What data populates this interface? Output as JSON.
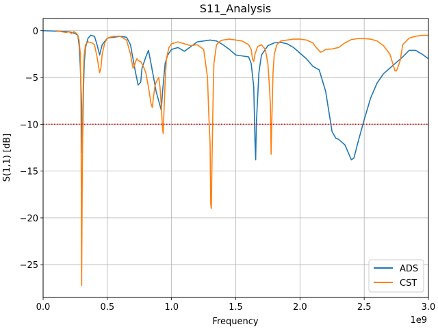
{
  "chart_data": {
    "type": "line",
    "title": "S11_Analysis",
    "xlabel": "Frequency",
    "ylabel": "S(1,1) [dB]",
    "x_scale_label": "1e9",
    "xlim": [
      0,
      3.0
    ],
    "ylim": [
      -28.5,
      1.3
    ],
    "xticks": [
      0,
      0.5,
      1.0,
      1.5,
      2.0,
      2.5,
      3.0
    ],
    "xtick_labels": [
      "0.0",
      "0.5",
      "1.0",
      "1.5",
      "2.0",
      "2.5",
      "3.0"
    ],
    "yticks": [
      0,
      -5,
      -10,
      -15,
      -20,
      -25
    ],
    "ytick_labels": [
      "0",
      "−5",
      "−10",
      "−15",
      "−20",
      "−25"
    ],
    "grid": true,
    "legend_position": "lower-right",
    "threshold_line": {
      "y": -10,
      "color": "#ff0000",
      "style": "dotted"
    },
    "series": [
      {
        "name": "ADS",
        "color": "#1f77b4",
        "x": [
          0,
          0.1,
          0.2,
          0.25,
          0.27,
          0.28,
          0.29,
          0.3,
          0.305,
          0.31,
          0.315,
          0.32,
          0.33,
          0.35,
          0.37,
          0.4,
          0.42,
          0.44,
          0.46,
          0.5,
          0.55,
          0.6,
          0.65,
          0.68,
          0.7,
          0.72,
          0.74,
          0.76,
          0.77,
          0.8,
          0.82,
          0.84,
          0.86,
          0.88,
          0.9,
          0.92,
          0.93,
          0.95,
          0.97,
          1.0,
          1.05,
          1.1,
          1.15,
          1.2,
          1.3,
          1.35,
          1.4,
          1.45,
          1.5,
          1.55,
          1.6,
          1.62,
          1.64,
          1.65,
          1.655,
          1.66,
          1.68,
          1.7,
          1.75,
          1.8,
          1.85,
          1.9,
          1.95,
          2.0,
          2.05,
          2.1,
          2.15,
          2.2,
          2.25,
          2.28,
          2.3,
          2.35,
          2.4,
          2.42,
          2.45,
          2.5,
          2.55,
          2.6,
          2.65,
          2.7,
          2.75,
          2.8,
          2.85,
          2.9,
          2.95,
          3.0
        ],
        "y": [
          0,
          -0.05,
          -0.1,
          -0.3,
          -0.5,
          -1.5,
          -4.0,
          -8.0,
          -13.0,
          -10.0,
          -6.0,
          -3.5,
          -1.8,
          -0.8,
          -0.5,
          -0.6,
          -1.5,
          -2.6,
          -1.5,
          -0.8,
          -0.7,
          -0.6,
          -0.7,
          -1.5,
          -3.0,
          -4.5,
          -5.8,
          -5.5,
          -4.0,
          -2.8,
          -2.1,
          -3.5,
          -5.0,
          -6.5,
          -7.5,
          -8.5,
          -6.5,
          -3.5,
          -2.6,
          -2.0,
          -1.8,
          -2.2,
          -1.7,
          -1.2,
          -1.0,
          -1.1,
          -1.5,
          -2.0,
          -2.6,
          -2.7,
          -2.8,
          -3.5,
          -6.0,
          -12.0,
          -13.8,
          -10.0,
          -4.5,
          -2.6,
          -1.6,
          -1.3,
          -1.25,
          -1.4,
          -1.8,
          -2.4,
          -3.0,
          -3.8,
          -4.2,
          -6.5,
          -10.8,
          -11.5,
          -11.6,
          -12.2,
          -13.8,
          -13.6,
          -12.0,
          -9.5,
          -7.2,
          -5.6,
          -4.6,
          -4.0,
          -3.4,
          -2.8,
          -2.1,
          -2.1,
          -2.5,
          -3.0
        ]
      },
      {
        "name": "CST",
        "color": "#ff7f0e",
        "x": [
          0.1,
          0.14,
          0.18,
          0.2,
          0.22,
          0.24,
          0.26,
          0.27,
          0.28,
          0.29,
          0.295,
          0.3,
          0.305,
          0.31,
          0.315,
          0.32,
          0.33,
          0.35,
          0.38,
          0.4,
          0.42,
          0.44,
          0.45,
          0.46,
          0.48,
          0.5,
          0.52,
          0.55,
          0.6,
          0.65,
          0.68,
          0.7,
          0.71,
          0.72,
          0.73,
          0.74,
          0.76,
          0.78,
          0.8,
          0.82,
          0.84,
          0.85,
          0.86,
          0.87,
          0.88,
          0.9,
          0.91,
          0.92,
          0.93,
          0.935,
          0.94,
          0.95,
          0.96,
          0.98,
          1.0,
          1.05,
          1.1,
          1.15,
          1.2,
          1.25,
          1.28,
          1.29,
          1.3,
          1.305,
          1.31,
          1.315,
          1.32,
          1.325,
          1.33,
          1.35,
          1.38,
          1.4,
          1.45,
          1.5,
          1.55,
          1.6,
          1.62,
          1.63,
          1.64,
          1.65,
          1.67,
          1.7,
          1.73,
          1.75,
          1.76,
          1.77,
          1.775,
          1.78,
          1.79,
          1.8,
          1.82,
          1.85,
          1.9,
          1.95,
          2.0,
          2.05,
          2.1,
          2.12,
          2.14,
          2.16,
          2.18,
          2.2,
          2.25,
          2.3,
          2.35,
          2.4,
          2.45,
          2.5,
          2.55,
          2.6,
          2.65,
          2.7,
          2.72,
          2.74,
          2.75,
          2.76,
          2.78,
          2.8,
          2.85,
          2.9,
          2.95,
          3.0
        ],
        "y": [
          0,
          -0.1,
          -0.2,
          -0.1,
          -0.3,
          -0.1,
          -0.3,
          -0.5,
          -1.0,
          -2.5,
          -8.0,
          -27.2,
          -15.0,
          -8.0,
          -4.0,
          -2.5,
          -1.5,
          -1.2,
          -1.3,
          -1.5,
          -2.8,
          -4.5,
          -4.0,
          -2.5,
          -1.3,
          -0.8,
          -0.7,
          -0.6,
          -0.6,
          -1.0,
          -2.5,
          -4.0,
          -3.8,
          -3.3,
          -3.0,
          -3.2,
          -3.3,
          -3.8,
          -4.5,
          -6.0,
          -7.8,
          -8.2,
          -7.0,
          -6.0,
          -5.5,
          -5.0,
          -6.0,
          -8.0,
          -10.5,
          -11.0,
          -9.0,
          -5.5,
          -3.0,
          -1.8,
          -1.4,
          -1.2,
          -1.4,
          -1.6,
          -1.5,
          -2.0,
          -5.0,
          -9.0,
          -12.0,
          -18.5,
          -19.0,
          -14.0,
          -10.0,
          -6.0,
          -3.5,
          -1.5,
          -1.1,
          -1.0,
          -0.9,
          -1.0,
          -1.1,
          -1.5,
          -2.0,
          -3.0,
          -3.3,
          -2.5,
          -1.7,
          -1.5,
          -2.0,
          -3.5,
          -5.5,
          -8.0,
          -13.2,
          -10.0,
          -4.5,
          -2.5,
          -1.5,
          -1.1,
          -1.0,
          -0.9,
          -0.9,
          -1.0,
          -1.3,
          -1.7,
          -2.0,
          -2.3,
          -2.2,
          -2.0,
          -1.95,
          -1.8,
          -1.3,
          -0.95,
          -0.85,
          -0.85,
          -0.9,
          -1.1,
          -1.6,
          -2.5,
          -3.4,
          -4.3,
          -4.3,
          -4.0,
          -3.2,
          -1.5,
          -0.8,
          -0.6,
          -0.5,
          -0.5
        ]
      }
    ]
  }
}
